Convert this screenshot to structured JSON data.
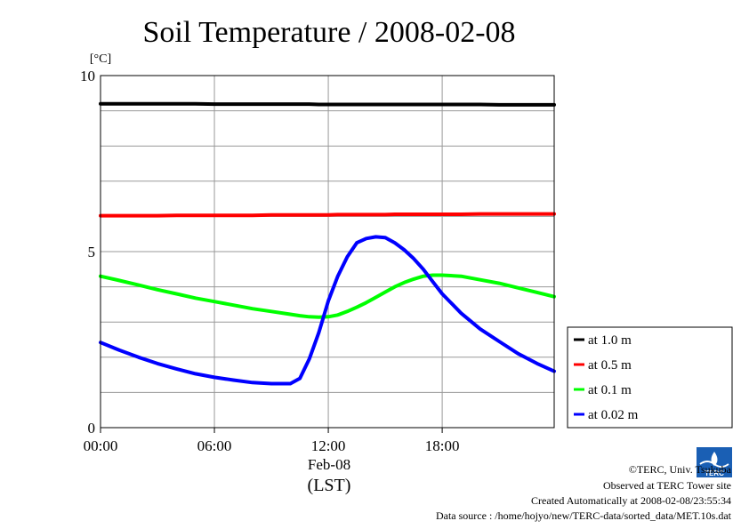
{
  "chart_data": {
    "type": "line",
    "title": "Soil Temperature / 2008-02-08",
    "ylabel": "[°C]",
    "xlabel_date": "Feb-08",
    "xlabel_tz": "(LST)",
    "xlim_hours": [
      0,
      23.9
    ],
    "ylim": [
      0,
      10
    ],
    "yticks": [
      0,
      5,
      10
    ],
    "ygrid": [
      1,
      2,
      3,
      4,
      6,
      7,
      8,
      9
    ],
    "xticks": [
      {
        "hour": 0,
        "label": "00:00"
      },
      {
        "hour": 6,
        "label": "06:00"
      },
      {
        "hour": 12,
        "label": "12:00"
      },
      {
        "hour": 18,
        "label": "18:00"
      }
    ],
    "x_hours": [
      0,
      1,
      2,
      3,
      4,
      5,
      6,
      7,
      8,
      9,
      10,
      10.5,
      11,
      11.5,
      12,
      12.5,
      13,
      13.5,
      14,
      14.5,
      15,
      15.5,
      16,
      16.5,
      17,
      17.5,
      18,
      19,
      20,
      21,
      22,
      23,
      23.9
    ],
    "series": [
      {
        "name": "at 1.0 m",
        "color": "#000000",
        "values": [
          9.2,
          9.2,
          9.2,
          9.2,
          9.2,
          9.2,
          9.19,
          9.19,
          9.19,
          9.19,
          9.19,
          9.19,
          9.19,
          9.18,
          9.18,
          9.18,
          9.18,
          9.18,
          9.18,
          9.18,
          9.18,
          9.18,
          9.18,
          9.18,
          9.18,
          9.18,
          9.18,
          9.18,
          9.18,
          9.17,
          9.17,
          9.17,
          9.17
        ]
      },
      {
        "name": "at 0.5 m",
        "color": "#ff0000",
        "values": [
          6.02,
          6.02,
          6.02,
          6.02,
          6.03,
          6.03,
          6.03,
          6.03,
          6.03,
          6.04,
          6.04,
          6.04,
          6.04,
          6.04,
          6.04,
          6.05,
          6.05,
          6.05,
          6.05,
          6.05,
          6.05,
          6.06,
          6.06,
          6.06,
          6.06,
          6.06,
          6.06,
          6.06,
          6.07,
          6.07,
          6.07,
          6.07,
          6.07
        ]
      },
      {
        "name": "at 0.1 m",
        "color": "#00ff00",
        "values": [
          4.3,
          4.18,
          4.05,
          3.92,
          3.8,
          3.68,
          3.58,
          3.48,
          3.38,
          3.3,
          3.22,
          3.18,
          3.15,
          3.14,
          3.15,
          3.2,
          3.3,
          3.42,
          3.55,
          3.7,
          3.85,
          4.0,
          4.12,
          4.22,
          4.3,
          4.33,
          4.33,
          4.3,
          4.2,
          4.1,
          3.97,
          3.84,
          3.72
        ]
      },
      {
        "name": "at 0.02 m",
        "color": "#0000ff",
        "values": [
          2.42,
          2.2,
          2.0,
          1.82,
          1.67,
          1.53,
          1.43,
          1.35,
          1.28,
          1.25,
          1.25,
          1.4,
          1.95,
          2.7,
          3.6,
          4.3,
          4.85,
          5.25,
          5.37,
          5.42,
          5.4,
          5.25,
          5.05,
          4.8,
          4.5,
          4.15,
          3.8,
          3.25,
          2.8,
          2.45,
          2.1,
          1.82,
          1.6
        ]
      }
    ]
  },
  "footer": {
    "copyright": "©TERC, Univ. Tsukuba",
    "observed": "Observed at TERC Tower site",
    "created": "Created Automatically at 2008-02-08/23:55:34",
    "source": "Data source : /home/hojyo/new/TERC-data/sorted_data/MET.10s.dat",
    "logo_text": "TERC"
  }
}
